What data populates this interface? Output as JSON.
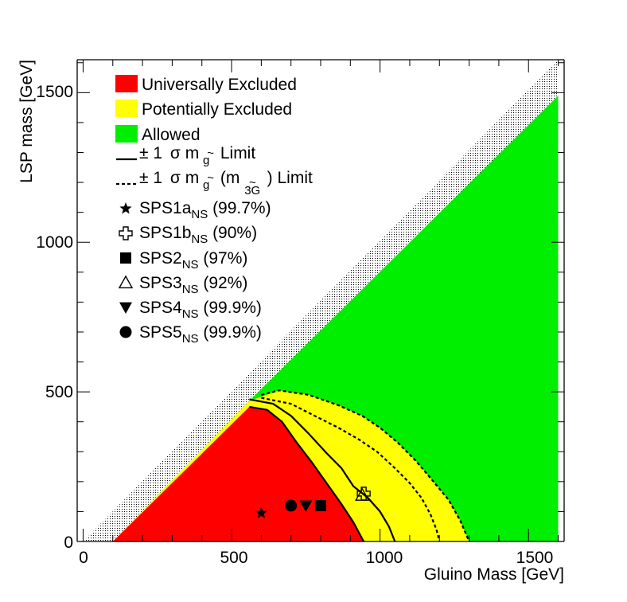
{
  "chart_data": {
    "type": "area",
    "title": "",
    "xlabel": "Gluino Mass [GeV]",
    "ylabel": "LSP mass [GeV]",
    "xlim": [
      -20,
      1620
    ],
    "ylim": [
      0,
      1610
    ],
    "xticks": [
      0,
      500,
      1000,
      1500
    ],
    "yticks": [
      0,
      500,
      1000,
      1500
    ],
    "xtick_labels": [
      "0",
      "500",
      "1000",
      "1500"
    ],
    "ytick_labels": [
      "0",
      "500",
      "1000",
      "1500"
    ],
    "colors": {
      "universally_excluded": "#ff0000",
      "potentially_excluded": "#ffff00",
      "allowed": "#00ee00",
      "hatch": "#000000"
    },
    "regions": [
      {
        "name": "Allowed",
        "points": [
          [
            560,
            470
          ],
          [
            1600,
            1490
          ],
          [
            1600,
            0
          ],
          [
            100,
            0
          ]
        ]
      },
      {
        "name": "Potentially Excluded",
        "points": [
          [
            100,
            0
          ],
          [
            560,
            470
          ],
          [
            660,
            505
          ],
          [
            760,
            490
          ],
          [
            860,
            455
          ],
          [
            940,
            420
          ],
          [
            1000,
            380
          ],
          [
            1060,
            330
          ],
          [
            1120,
            270
          ],
          [
            1180,
            200
          ],
          [
            1230,
            140
          ],
          [
            1270,
            70
          ],
          [
            1300,
            0
          ]
        ]
      },
      {
        "name": "Universally Excluded",
        "points": [
          [
            100,
            0
          ],
          [
            560,
            450
          ],
          [
            620,
            440
          ],
          [
            670,
            400
          ],
          [
            720,
            330
          ],
          [
            770,
            265
          ],
          [
            820,
            195
          ],
          [
            870,
            125
          ],
          [
            910,
            65
          ],
          [
            945,
            0
          ]
        ]
      }
    ],
    "limit_curves": [
      {
        "name": "solid-left",
        "points": [
          [
            560,
            450
          ],
          [
            620,
            440
          ],
          [
            670,
            400
          ],
          [
            720,
            330
          ],
          [
            770,
            265
          ],
          [
            820,
            195
          ],
          [
            870,
            125
          ],
          [
            910,
            65
          ],
          [
            945,
            0
          ]
        ]
      },
      {
        "name": "solid-right",
        "points": [
          [
            560,
            475
          ],
          [
            640,
            460
          ],
          [
            700,
            420
          ],
          [
            760,
            360
          ],
          [
            820,
            295
          ],
          [
            870,
            245
          ],
          [
            910,
            185
          ],
          [
            960,
            145
          ],
          [
            1000,
            100
          ],
          [
            1030,
            50
          ],
          [
            1050,
            0
          ]
        ]
      },
      {
        "name": "dashed-inner",
        "points": [
          [
            600,
            480
          ],
          [
            700,
            460
          ],
          [
            780,
            420
          ],
          [
            860,
            380
          ],
          [
            930,
            340
          ],
          [
            990,
            300
          ],
          [
            1050,
            245
          ],
          [
            1100,
            195
          ],
          [
            1140,
            145
          ],
          [
            1170,
            90
          ],
          [
            1190,
            40
          ],
          [
            1200,
            0
          ]
        ]
      },
      {
        "name": "dashed-outer",
        "points": [
          [
            600,
            490
          ],
          [
            660,
            505
          ],
          [
            760,
            490
          ],
          [
            860,
            455
          ],
          [
            940,
            420
          ],
          [
            1000,
            380
          ],
          [
            1060,
            330
          ],
          [
            1120,
            270
          ],
          [
            1180,
            200
          ],
          [
            1230,
            140
          ],
          [
            1270,
            70
          ],
          [
            1300,
            0
          ]
        ]
      }
    ],
    "hatch_band": {
      "lower": [
        [
          100,
          0
        ],
        [
          1600,
          1490
        ]
      ],
      "upper": [
        [
          0,
          0
        ],
        [
          1600,
          1610
        ]
      ]
    },
    "markers": [
      {
        "name": "SPS1a",
        "symbol": "star",
        "x": 600,
        "y": 95
      },
      {
        "name": "SPS1b",
        "symbol": "open-cross",
        "x": 945,
        "y": 160
      },
      {
        "name": "SPS2",
        "symbol": "square",
        "x": 800,
        "y": 120
      },
      {
        "name": "SPS3",
        "symbol": "open-triangle",
        "x": 940,
        "y": 155
      },
      {
        "name": "SPS4",
        "symbol": "triangle-down",
        "x": 750,
        "y": 120
      },
      {
        "name": "SPS5",
        "symbol": "circle",
        "x": 700,
        "y": 120
      }
    ]
  },
  "legend": {
    "universal": "Universally Excluded",
    "potential": "Potentially Excluded",
    "allowed": "Allowed",
    "solid_pm": "± 1",
    "solid_sigma": "σ",
    "solid_m": " m",
    "solid_sub": "g",
    "solid_tilde": "~",
    "solid_limit": " Limit",
    "dashed_pm": "± 1",
    "dashed_sigma": "σ",
    "dashed_m": " m",
    "dashed_sub": "g",
    "dashed_tilde": "~",
    "dashed_paren": "(m",
    "dashed_sub2": "3G",
    "dashed_tilde2": "~",
    "dashed_limit": ") Limit",
    "sps1a_name": "SPS1a",
    "sps1a_sub": "NS",
    "sps1a_pct": " (99.7%)",
    "sps1b_name": "SPS1b",
    "sps1b_sub": "NS",
    "sps1b_pct": " (90%)",
    "sps2_name": "SPS2",
    "sps2_sub": "NS",
    "sps2_pct": " (97%)",
    "sps3_name": "SPS3",
    "sps3_sub": "NS",
    "sps3_pct": " (92%)",
    "sps4_name": "SPS4",
    "sps4_sub": "NS",
    "sps4_pct": " (99.9%)",
    "sps5_name": "SPS5",
    "sps5_sub": "NS",
    "sps5_pct": " (99.9%)"
  }
}
